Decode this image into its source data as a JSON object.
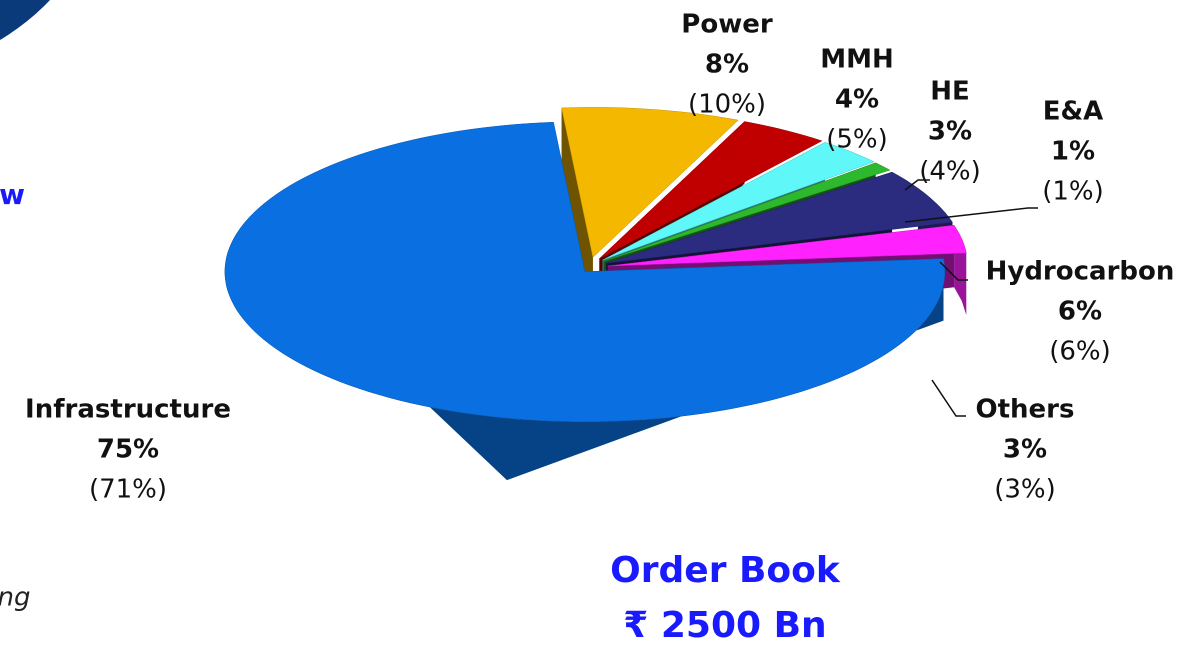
{
  "chart_data": {
    "type": "pie",
    "title": [
      "Order Book",
      "₹ 2500 Bn"
    ],
    "categories": [
      "Power",
      "MMH",
      "HE",
      "E&A",
      "Hydrocarbon",
      "Others",
      "Infrastructure"
    ],
    "values": [
      8,
      4,
      3,
      1,
      6,
      3,
      75
    ],
    "value_labels": [
      "8%",
      "4%",
      "3%",
      "1%",
      "6%",
      "3%",
      "75%"
    ],
    "prior_values": [
      10,
      5,
      4,
      1,
      6,
      3,
      71
    ],
    "prior_value_labels": [
      "(10%)",
      "(5%)",
      "(4%)",
      "(1%)",
      "(6%)",
      "(3%)",
      "(71%)"
    ],
    "colors": [
      "#f5b800",
      "#c00000",
      "#5ff7f7",
      "#2eb82e",
      "#2b2b80",
      "#ff22ff",
      "#0a6fe0"
    ],
    "fragments": [
      "w",
      "ng"
    ]
  }
}
